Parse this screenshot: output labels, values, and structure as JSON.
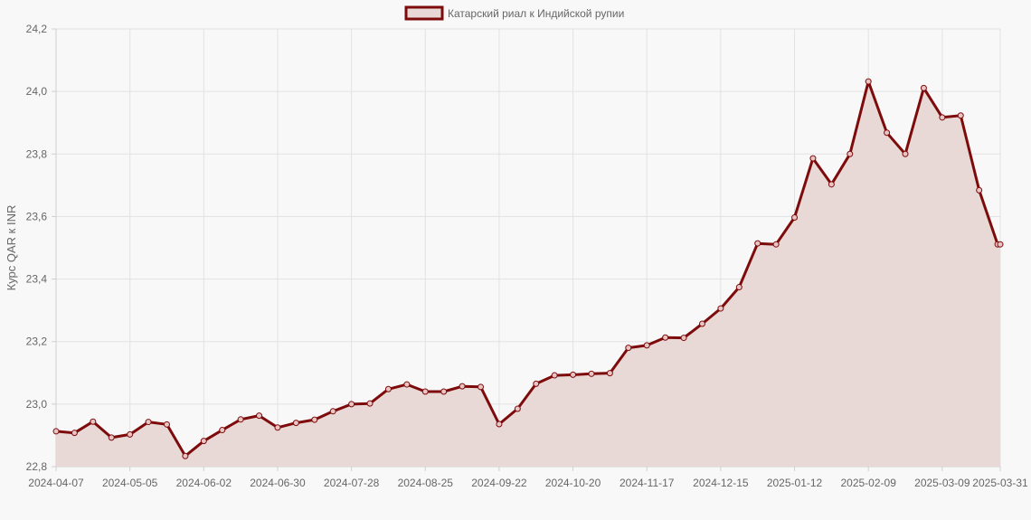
{
  "colors": {
    "background": "#f8f8f8",
    "grid": "#e2e2e2",
    "axis": "#cfcfcf",
    "line": "#7d0b0b",
    "fill": "#e8d8d6",
    "point_fill": "#e8c4c4",
    "text": "#666666"
  },
  "chart_data": {
    "type": "area",
    "title": "",
    "legend": {
      "label": "Катарский риал к Индийской рупии",
      "position": "top-center"
    },
    "xlabel": "",
    "ylabel": "Курс QAR к INR",
    "ylim": [
      22.8,
      24.2
    ],
    "y_ticks": [
      "22,8",
      "23,0",
      "23,2",
      "23,4",
      "23,6",
      "23,8",
      "24,0",
      "24,2"
    ],
    "x_ticks": [
      "2024-04-07",
      "2024-05-05",
      "2024-06-02",
      "2024-06-30",
      "2024-07-28",
      "2024-08-25",
      "2024-09-22",
      "2024-10-20",
      "2024-11-17",
      "2024-12-15",
      "2025-01-12",
      "2025-02-09",
      "2025-03-09",
      "2025-03-31"
    ],
    "grid": true,
    "series": [
      {
        "name": "Катарский риал к Индийской рупии",
        "points": [
          [
            "2024-04-07",
            22.913
          ],
          [
            "2024-04-14",
            22.908
          ],
          [
            "2024-04-21",
            22.944
          ],
          [
            "2024-04-28",
            22.893
          ],
          [
            "2024-05-05",
            22.903
          ],
          [
            "2024-05-12",
            22.943
          ],
          [
            "2024-05-19",
            22.935
          ],
          [
            "2024-05-26",
            22.834
          ],
          [
            "2024-06-02",
            22.882
          ],
          [
            "2024-06-09",
            22.917
          ],
          [
            "2024-06-16",
            22.951
          ],
          [
            "2024-06-23",
            22.963
          ],
          [
            "2024-06-30",
            22.925
          ],
          [
            "2024-07-07",
            22.94
          ],
          [
            "2024-07-14",
            22.95
          ],
          [
            "2024-07-21",
            22.977
          ],
          [
            "2024-07-28",
            23.0
          ],
          [
            "2024-08-04",
            23.002
          ],
          [
            "2024-08-11",
            23.048
          ],
          [
            "2024-08-18",
            23.063
          ],
          [
            "2024-08-25",
            23.04
          ],
          [
            "2024-09-01",
            23.04
          ],
          [
            "2024-09-08",
            23.057
          ],
          [
            "2024-09-15",
            23.055
          ],
          [
            "2024-09-22",
            22.936
          ],
          [
            "2024-09-29",
            22.985
          ],
          [
            "2024-10-06",
            23.065
          ],
          [
            "2024-10-13",
            23.092
          ],
          [
            "2024-10-20",
            23.094
          ],
          [
            "2024-10-27",
            23.097
          ],
          [
            "2024-11-03",
            23.099
          ],
          [
            "2024-11-10",
            23.18
          ],
          [
            "2024-11-17",
            23.188
          ],
          [
            "2024-11-24",
            23.213
          ],
          [
            "2024-12-01",
            23.212
          ],
          [
            "2024-12-08",
            23.257
          ],
          [
            "2024-12-15",
            23.306
          ],
          [
            "2024-12-22",
            23.374
          ],
          [
            "2024-12-29",
            23.514
          ],
          [
            "2025-01-05",
            23.511
          ],
          [
            "2025-01-12",
            23.597
          ],
          [
            "2025-01-19",
            23.786
          ],
          [
            "2025-01-26",
            23.703
          ],
          [
            "2025-02-02",
            23.8
          ],
          [
            "2025-02-09",
            24.032
          ],
          [
            "2025-02-16",
            23.868
          ],
          [
            "2025-02-23",
            23.8
          ],
          [
            "2025-03-02",
            24.011
          ],
          [
            "2025-03-09",
            23.917
          ],
          [
            "2025-03-16",
            23.923
          ],
          [
            "2025-03-23",
            23.684
          ],
          [
            "2025-03-30",
            23.511
          ],
          [
            "2025-03-31",
            23.511
          ]
        ]
      }
    ]
  }
}
